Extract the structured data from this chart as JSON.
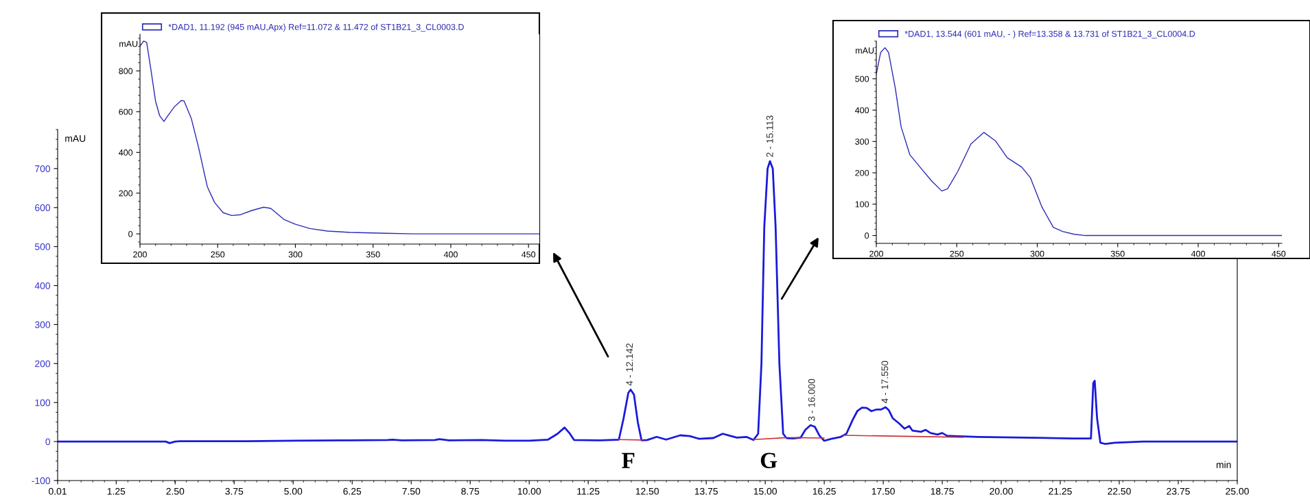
{
  "chart_data": [
    {
      "type": "line",
      "xlabel": "min",
      "ylabel": "mAU",
      "xlim": [
        0.01,
        25
      ],
      "ylim": [
        -100,
        800
      ],
      "xticks": [
        0.01,
        {
          "value": 1.25,
          "label": "1.25"
        },
        {
          "value": 2.5,
          "label": "2.50"
        },
        {
          "value": 3.75,
          "label": "3.75"
        },
        {
          "value": 5,
          "label": "5.00"
        },
        {
          "value": 6.25,
          "label": "6.25"
        },
        {
          "value": 7.5,
          "label": "7.50"
        },
        {
          "value": 8.75,
          "label": "8.75"
        },
        {
          "value": 10,
          "label": "10.00"
        },
        {
          "value": 11.25,
          "label": "11.25"
        },
        {
          "value": 12.5,
          "label": "12.50"
        },
        {
          "value": 13.75,
          "label": "13.75"
        },
        {
          "value": 15,
          "label": "15.00"
        },
        {
          "value": 16.25,
          "label": "16.25"
        },
        {
          "value": 17.5,
          "label": "17.50"
        },
        {
          "value": 18.75,
          "label": "18.75"
        },
        {
          "value": 20,
          "label": "20.00"
        },
        {
          "value": 21.25,
          "label": "21.25"
        },
        {
          "value": 22.5,
          "label": "22.50"
        },
        {
          "value": 23.75,
          "label": "23.75"
        },
        {
          "value": 25,
          "label": "25.00"
        }
      ],
      "yticks": [
        -100,
        0,
        100,
        200,
        300,
        400,
        500,
        600,
        700
      ],
      "series": [
        {
          "color": "#1a1adb",
          "x": [
            0.01,
            2.3,
            2.38,
            2.5,
            2.6,
            4.0,
            5.0,
            6.0,
            7.0,
            7.1,
            7.3,
            8.0,
            8.1,
            8.3,
            9.0,
            9.5,
            10.0,
            10.4,
            10.6,
            10.75,
            10.85,
            10.95,
            11.5,
            11.9,
            12.0,
            12.1,
            12.15,
            12.22,
            12.3,
            12.38,
            12.5,
            12.7,
            12.9,
            13.2,
            13.4,
            13.6,
            13.9,
            14.1,
            14.25,
            14.4,
            14.6,
            14.75,
            14.85,
            14.92,
            14.98,
            15.05,
            15.1,
            15.16,
            15.22,
            15.3,
            15.38,
            15.45,
            15.6,
            15.75,
            15.85,
            15.96,
            16.05,
            16.15,
            16.25,
            16.4,
            16.6,
            16.72,
            16.85,
            16.95,
            17.05,
            17.15,
            17.25,
            17.35,
            17.45,
            17.55,
            17.62,
            17.7,
            17.85,
            17.95,
            18.05,
            18.12,
            18.3,
            18.4,
            18.5,
            18.65,
            18.75,
            18.85,
            19.0,
            19.5,
            20.5,
            21.5,
            21.9,
            21.95,
            21.98,
            22.03,
            22.1,
            22.2,
            22.4,
            23.0,
            25.0
          ],
          "values": [
            0,
            0,
            -4,
            0,
            1,
            1,
            2,
            3,
            4,
            5,
            3,
            4,
            6,
            3,
            4,
            2,
            2,
            5,
            20,
            36,
            22,
            4,
            3,
            5,
            60,
            125,
            133,
            120,
            50,
            3,
            4,
            12,
            5,
            16,
            14,
            7,
            9,
            20,
            15,
            10,
            12,
            4,
            20,
            200,
            550,
            700,
            719,
            700,
            550,
            200,
            20,
            9,
            8,
            10,
            30,
            42,
            38,
            15,
            2,
            7,
            12,
            20,
            55,
            78,
            87,
            86,
            78,
            82,
            82,
            88,
            80,
            60,
            45,
            33,
            40,
            28,
            25,
            30,
            22,
            18,
            22,
            15,
            14,
            12,
            10,
            8,
            8,
            150,
            156,
            60,
            -3,
            -6,
            -3,
            0,
            0
          ]
        },
        {
          "color": "#cc3333",
          "x": [
            11.9,
            12.4,
            12.45,
            14.75,
            15.45,
            15.5,
            15.55,
            16.25,
            16.3,
            16.65,
            19.2
          ],
          "values": [
            5,
            4,
            null,
            5,
            10,
            null,
            10,
            9,
            null,
            16,
            11
          ]
        }
      ],
      "annotations": [
        {
          "text": "4 - 12.142",
          "x": 12.142,
          "y": 133
        },
        {
          "text": "2 - 15.113",
          "x": 15.113,
          "y": 719
        },
        {
          "text": "3 - 16.000",
          "x": 16.0,
          "y": 42
        },
        {
          "text": "4 - 17.550",
          "x": 17.55,
          "y": 88
        },
        "F",
        "G"
      ]
    },
    {
      "type": "line",
      "ylabel": "mAU",
      "xlim": [
        200,
        457
      ],
      "ylim": [
        -50,
        980
      ],
      "xticks": [
        200,
        250,
        300,
        350,
        400,
        450
      ],
      "yticks": [
        0,
        200,
        400,
        600,
        800
      ],
      "legend": "top",
      "series": [
        {
          "name": "*DAD1, 11.192 (945 mAU,Apx) Ref=11.072 & 11.472 of ST1B21_3_CL0003.D",
          "color": "#2b2bb8",
          "x": [
            200,
            202.4,
            204.3,
            207,
            210,
            212.6,
            215.4,
            218,
            222,
            226.6,
            228.4,
            233,
            237.7,
            243.3,
            248,
            253.5,
            259,
            264.7,
            272,
            279.6,
            284.2,
            292.6,
            300,
            309.3,
            320.4,
            335,
            357.6,
            376,
            457
          ],
          "values": [
            922,
            947,
            940,
            808,
            652,
            581,
            552,
            581,
            623,
            655,
            652,
            567,
            424,
            232,
            154,
            104,
            90,
            94,
            115,
            131,
            125,
            71,
            47,
            26,
            14,
            7,
            3,
            0,
            0
          ]
        }
      ]
    },
    {
      "type": "line",
      "ylabel": "mAU",
      "xlim": [
        200,
        452
      ],
      "ylim": [
        -25,
        620
      ],
      "xticks": [
        200,
        250,
        300,
        350,
        400,
        450
      ],
      "yticks": [
        0,
        100,
        200,
        300,
        400,
        500
      ],
      "legend": "top",
      "series": [
        {
          "name": "*DAD1, 13.544 (601 mAU, - ) Ref=13.358 & 13.731 of ST1B21_3_CL0004.D",
          "color": "#2b2bb8",
          "x": [
            200,
            202.7,
            205.4,
            207.6,
            211.8,
            215.4,
            220.8,
            228,
            234.4,
            240.7,
            244.3,
            250.6,
            258.8,
            266.9,
            274,
            281.4,
            290.4,
            295.8,
            303,
            310,
            315.7,
            323,
            330,
            452
          ],
          "values": [
            515,
            584,
            599,
            584,
            470,
            347,
            258,
            213,
            174,
            142,
            149,
            204,
            292,
            329,
            302,
            248,
            218,
            184,
            90,
            26,
            13,
            4,
            0,
            0
          ]
        }
      ]
    }
  ]
}
